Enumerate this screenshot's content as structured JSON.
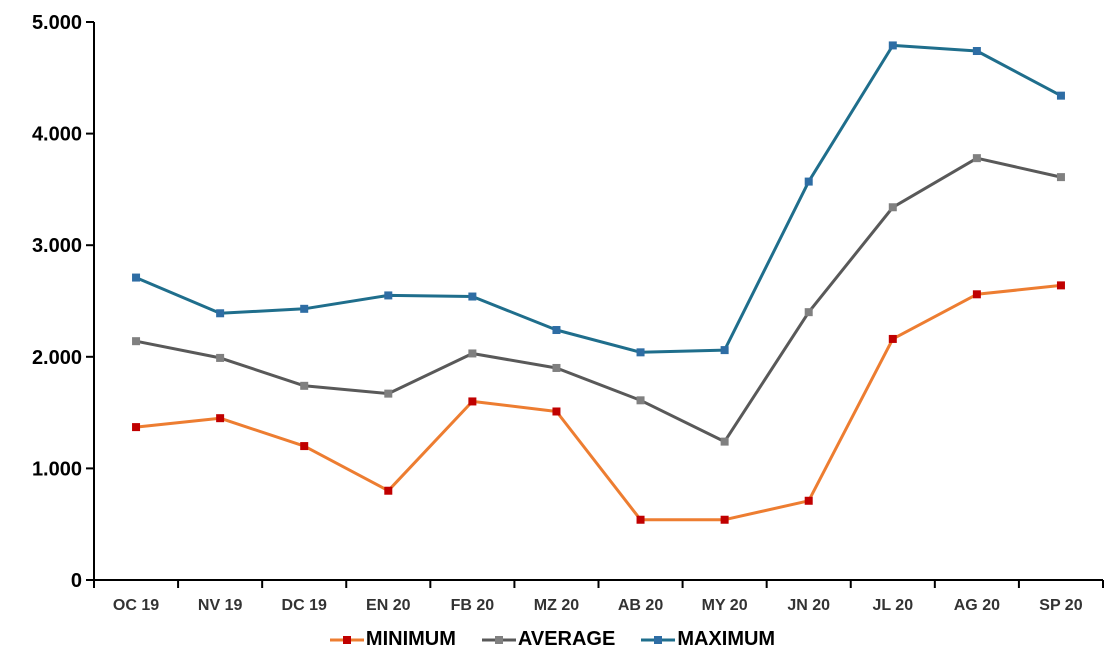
{
  "chart_data": {
    "type": "line",
    "categories": [
      "OC 19",
      "NV 19",
      "DC 19",
      "EN 20",
      "FB 20",
      "MZ 20",
      "AB 20",
      "MY 20",
      "JN 20",
      "JL 20",
      "AG 20",
      "SP 20"
    ],
    "series": [
      {
        "name": "MINIMUM",
        "color": "#ED7D31",
        "marker_color": "#C00000",
        "values": [
          1370,
          1450,
          1200,
          800,
          1600,
          1510,
          540,
          540,
          710,
          2160,
          2560,
          2640
        ]
      },
      {
        "name": "AVERAGE",
        "color": "#595959",
        "marker_color": "#808080",
        "values": [
          2140,
          1990,
          1740,
          1670,
          2030,
          1900,
          1610,
          1240,
          2400,
          3340,
          3780,
          3610
        ]
      },
      {
        "name": "MAXIMUM",
        "color": "#1F6E8C",
        "marker_color": "#2E6DA4",
        "values": [
          2710,
          2390,
          2430,
          2550,
          2540,
          2240,
          2040,
          2060,
          3570,
          4790,
          4740,
          4340
        ]
      }
    ],
    "yticks": [
      "0",
      "1.000",
      "2.000",
      "3.000",
      "4.000",
      "5.000"
    ],
    "ylim": [
      0,
      5000
    ],
    "title": "",
    "xlabel": "",
    "ylabel": "",
    "grid": false,
    "legend_position": "bottom"
  }
}
